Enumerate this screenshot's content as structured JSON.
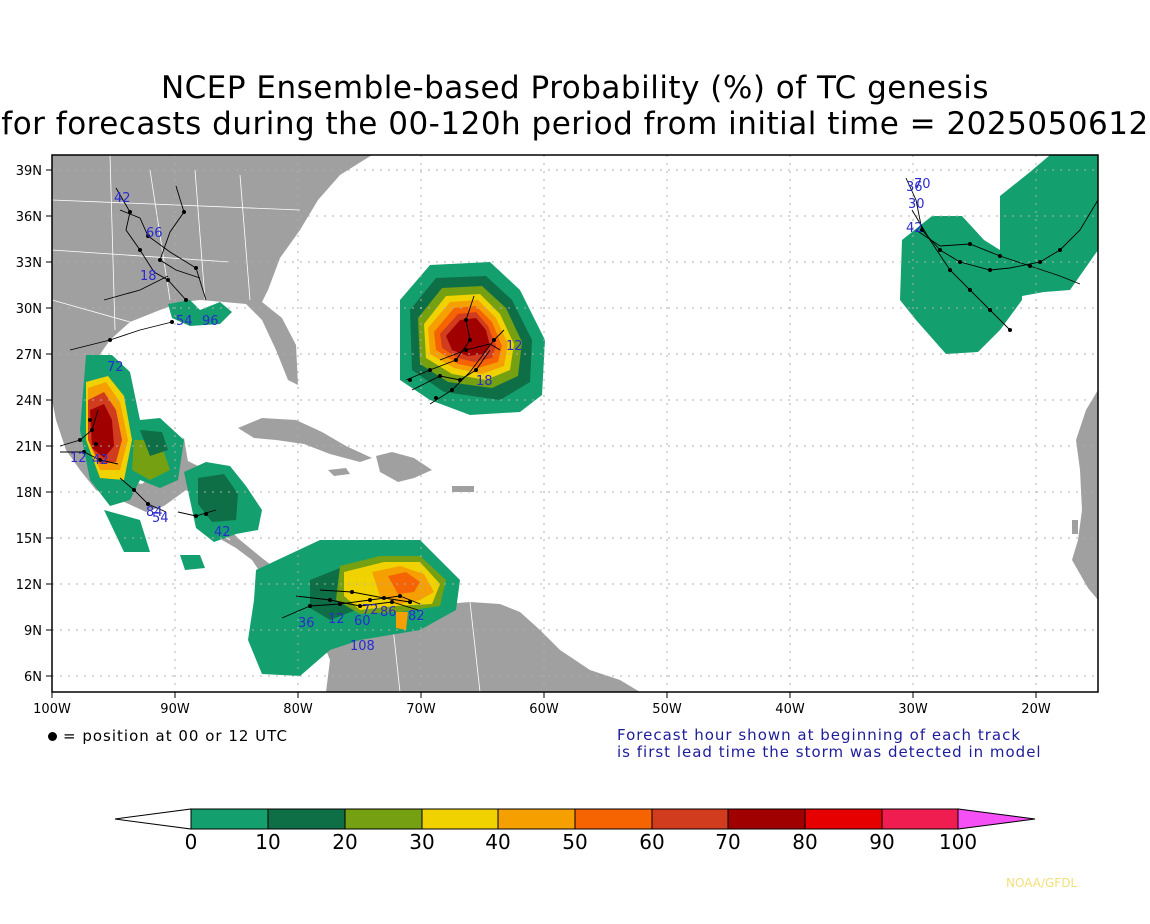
{
  "title": {
    "line1": "NCEP Ensemble-based Probability (%) of TC genesis",
    "line2": "for forecasts during the 00-120h period from initial time = 2025050612"
  },
  "axes": {
    "lat_labels": [
      "39N",
      "36N",
      "33N",
      "30N",
      "27N",
      "24N",
      "21N",
      "18N",
      "15N",
      "12N",
      "9N",
      "6N"
    ],
    "lon_labels": [
      "100W",
      "90W",
      "80W",
      "70W",
      "60W",
      "50W",
      "40W",
      "30W",
      "20W"
    ]
  },
  "legend": {
    "dot_note": "= position at 00 or 12 UTC",
    "forecast_note_line1": "Forecast hour shown at beginning of each track",
    "forecast_note_line2": "is first lead time the storm was detected in model"
  },
  "colorbar": {
    "labels": [
      "0",
      "10",
      "20",
      "30",
      "40",
      "50",
      "60",
      "70",
      "80",
      "90",
      "100"
    ],
    "colors": [
      "#14a06e",
      "#0e6e46",
      "#74a012",
      "#f0d200",
      "#f5a000",
      "#f56400",
      "#d23c1e",
      "#a00000",
      "#e60000",
      "#f01e50",
      "#f550f5"
    ]
  },
  "track_hour_labels": {
    "gulf_west": [
      "72",
      "12",
      "42",
      "96"
    ],
    "central_america": [
      "54",
      "84",
      "42"
    ],
    "southeast_us": [
      "42",
      "66",
      "18",
      "54",
      "96"
    ],
    "atlantic_central": [
      "12",
      "18"
    ],
    "caribbean": [
      "36",
      "12",
      "60",
      "108",
      "72",
      "86",
      "8",
      "82"
    ],
    "east_atlantic": [
      "30",
      "36",
      "30",
      "42",
      "70"
    ]
  },
  "credit": "NOAA/GFDL",
  "colors": {
    "land": "#a0a0a0",
    "ocean": "#ffffff",
    "track_label": "#2a2ad0"
  }
}
